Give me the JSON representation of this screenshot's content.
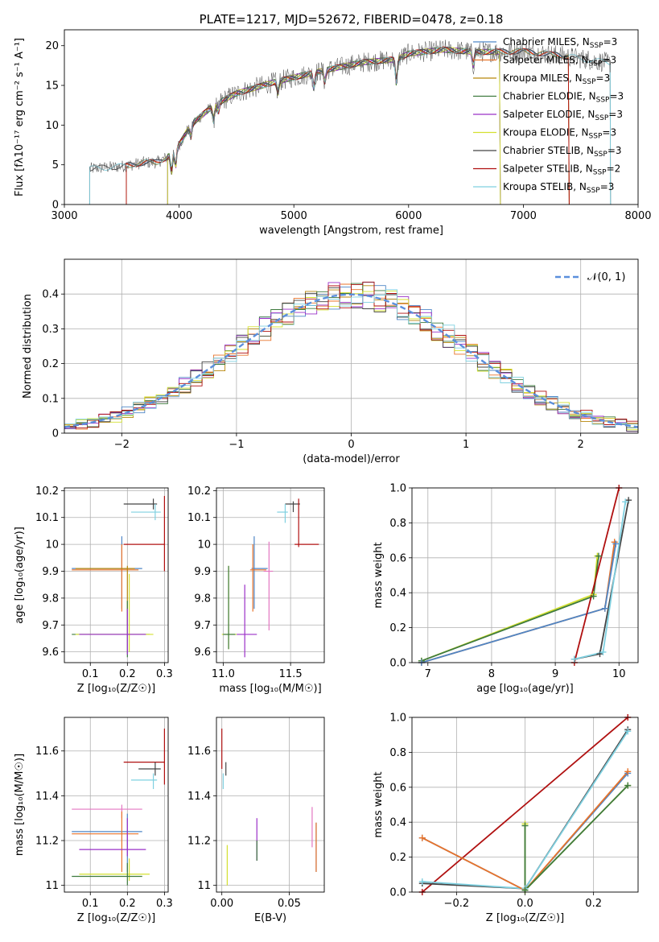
{
  "colors": {
    "chabrier_miles": "#4f86c6",
    "salpeter_miles": "#e8732a",
    "kroupa_miles": "#b8860b",
    "chabrier_elodie": "#3e7a3e",
    "salpeter_elodie": "#9b30c8",
    "kroupa_elodie": "#d4e030",
    "chabrier_stelib": "#444444",
    "salpeter_stelib": "#b01010",
    "kroupa_stelib": "#7fd0e0",
    "pink": "#e377c2",
    "normal": "#5b8fdc",
    "grid": "#b0b0b0"
  },
  "chart_data": [
    {
      "id": "spectrum",
      "type": "line",
      "title": "PLATE=1217, MJD=52672, FIBERID=0478, z=0.18",
      "xlabel": "wavelength [Angstrom, rest frame]",
      "ylabel": "Flux [fλ10⁻¹⁷ erg cm⁻² s⁻¹ A⁻¹]",
      "xlim": [
        3000,
        8000
      ],
      "ylim": [
        0,
        22
      ],
      "xticks": [
        3000,
        4000,
        5000,
        6000,
        7000,
        8000
      ],
      "yticks": [
        0,
        5,
        10,
        15,
        20
      ],
      "grid": false,
      "legend_position": "top-right",
      "series": [
        {
          "name": "Chabrier MILES, N_SSP=3",
          "key": "chabrier_miles",
          "range": [
            3540,
            7400
          ]
        },
        {
          "name": "Salpeter MILES, N_SSP=3",
          "key": "salpeter_miles",
          "range": [
            3540,
            7400
          ]
        },
        {
          "name": "Kroupa MILES, N_SSP=3",
          "key": "kroupa_miles",
          "range": [
            3540,
            7400
          ]
        },
        {
          "name": "Chabrier ELODIE, N_SSP=3",
          "key": "chabrier_elodie",
          "range": [
            3900,
            6800
          ]
        },
        {
          "name": "Salpeter ELODIE, N_SSP=3",
          "key": "salpeter_elodie",
          "range": [
            3900,
            6800
          ]
        },
        {
          "name": "Kroupa ELODIE, N_SSP=3",
          "key": "kroupa_elodie",
          "range": [
            3900,
            6800
          ]
        },
        {
          "name": "Chabrier STELIB, N_SSP=3",
          "key": "chabrier_stelib",
          "range": [
            3220,
            7760
          ]
        },
        {
          "name": "Salpeter STELIB, N_SSP=2",
          "key": "salpeter_stelib",
          "range": [
            3540,
            7400
          ]
        },
        {
          "name": "Kroupa STELIB, N_SSP=3",
          "key": "kroupa_stelib",
          "range": [
            3220,
            7760
          ]
        }
      ],
      "continuum": {
        "x": [
          3220,
          3300,
          3500,
          3700,
          3800,
          3900,
          4000,
          4100,
          4300,
          4500,
          4800,
          5000,
          5300,
          5600,
          5900,
          6000,
          6300,
          6600,
          7000,
          7300,
          7500,
          7760
        ],
        "y": [
          4.5,
          4.6,
          4.8,
          5.3,
          5.3,
          6.0,
          7.5,
          10.0,
          12.5,
          14.0,
          15.3,
          16.0,
          17.0,
          17.9,
          18.3,
          19.0,
          19.5,
          19.2,
          19.3,
          18.8,
          18.4,
          17.8
        ]
      }
    },
    {
      "id": "residuals",
      "type": "line",
      "xlabel": "(data-model)/error",
      "ylabel": "Normed distribution",
      "xlim": [
        -2.5,
        2.5
      ],
      "ylim": [
        0,
        0.5
      ],
      "xticks": [
        -2,
        -1,
        0,
        1,
        2
      ],
      "xtick_labels": [
        "−2",
        "−1",
        "0",
        "1",
        "2"
      ],
      "yticks": [
        0,
        0.1,
        0.2,
        0.3,
        0.4
      ],
      "grid": true,
      "legend_position": "top-right",
      "legend": "𝒩(0, 1)",
      "bin_width": 0.1,
      "curve": "standard normal"
    },
    {
      "id": "age-vs-z",
      "type": "scatter",
      "xlabel": "Z [log₁₀(Z/Z☉)]",
      "ylabel": "age  [log₁₀(age/yr)]",
      "xlim": [
        0.03,
        0.31
      ],
      "ylim": [
        9.56,
        10.21
      ],
      "xticks": [
        0.1,
        0.2,
        0.3
      ],
      "yticks": [
        9.6,
        9.7,
        9.8,
        9.9,
        10.0,
        10.1,
        10.2
      ],
      "grid": true,
      "points": [
        {
          "x": 0.27,
          "y": 10.15,
          "xerr": [
            0.19,
            0.28
          ],
          "yerr": [
            10.13,
            10.17
          ],
          "c": "chabrier_stelib"
        },
        {
          "x": 0.275,
          "y": 10.12,
          "xerr": [
            0.21,
            0.29
          ],
          "yerr": [
            10.09,
            10.15
          ],
          "c": "kroupa_stelib"
        },
        {
          "x": 0.3,
          "y": 10.0,
          "xerr": [
            0.19,
            0.3
          ],
          "yerr": [
            9.9,
            10.18
          ],
          "c": "salpeter_stelib"
        },
        {
          "x": 0.185,
          "y": 9.91,
          "xerr": [
            0.05,
            0.24
          ],
          "yerr": [
            9.76,
            10.03
          ],
          "c": "chabrier_miles"
        },
        {
          "x": 0.185,
          "y": 9.905,
          "xerr": [
            0.05,
            0.23
          ],
          "yerr": [
            9.75,
            10.0
          ],
          "c": "salpeter_miles"
        },
        {
          "x": 0.2,
          "y": 9.91,
          "xerr": [
            0.06,
            0.22
          ],
          "yerr": [
            9.7,
            9.92
          ],
          "c": "kroupa_miles"
        },
        {
          "x": 0.2,
          "y": 9.665,
          "xerr": [
            0.05,
            0.26
          ],
          "yerr": [
            9.58,
            9.79
          ],
          "c": "chabrier_elodie"
        },
        {
          "x": 0.205,
          "y": 9.665,
          "xerr": [
            0.06,
            0.27
          ],
          "yerr": [
            9.6,
            9.89
          ],
          "c": "kroupa_elodie"
        },
        {
          "x": 0.2,
          "y": 9.665,
          "xerr": [
            0.07,
            0.25
          ],
          "yerr": [
            9.59,
            9.76
          ],
          "c": "salpeter_elodie"
        }
      ]
    },
    {
      "id": "age-vs-mass",
      "type": "scatter",
      "xlabel": "mass [log₁₀(M/M☉)]",
      "ylabel": "",
      "xlim": [
        10.95,
        11.75
      ],
      "ylim": [
        9.56,
        10.21
      ],
      "xticks": [
        11.0,
        11.5
      ],
      "xtick_labels": [
        "11.0",
        "11.5"
      ],
      "yticks": [
        9.6,
        9.7,
        9.8,
        9.9,
        10.0,
        10.1,
        10.2
      ],
      "grid": true,
      "points": [
        {
          "x": 11.52,
          "y": 10.15,
          "xerr": [
            11.46,
            11.57
          ],
          "yerr": [
            10.12,
            10.16
          ],
          "c": "chabrier_stelib"
        },
        {
          "x": 11.46,
          "y": 10.12,
          "xerr": [
            11.4,
            11.48
          ],
          "yerr": [
            10.08,
            10.15
          ],
          "c": "kroupa_stelib"
        },
        {
          "x": 11.56,
          "y": 10.0,
          "xerr": [
            11.53,
            11.71
          ],
          "yerr": [
            9.99,
            10.17
          ],
          "c": "salpeter_stelib"
        },
        {
          "x": 11.23,
          "y": 9.91,
          "xerr": [
            11.21,
            11.33
          ],
          "yerr": [
            9.76,
            10.03
          ],
          "c": "chabrier_miles"
        },
        {
          "x": 11.22,
          "y": 9.905,
          "xerr": [
            11.2,
            11.32
          ],
          "yerr": [
            9.75,
            10.0
          ],
          "c": "salpeter_miles"
        },
        {
          "x": 11.34,
          "y": 9.9,
          "xerr": [
            11.3,
            11.37
          ],
          "yerr": [
            9.68,
            10.01
          ],
          "c": "pink"
        },
        {
          "x": 11.04,
          "y": 9.665,
          "xerr": [
            10.99,
            11.1
          ],
          "yerr": [
            9.61,
            9.92
          ],
          "c": "kroupa_elodie"
        },
        {
          "x": 11.04,
          "y": 9.665,
          "xerr": [
            11.0,
            11.09
          ],
          "yerr": [
            9.61,
            9.92
          ],
          "c": "chabrier_elodie"
        },
        {
          "x": 11.16,
          "y": 9.665,
          "xerr": [
            11.1,
            11.25
          ],
          "yerr": [
            9.58,
            9.85
          ],
          "c": "salpeter_elodie"
        }
      ]
    },
    {
      "id": "weight-vs-age",
      "type": "line",
      "xlabel": "age  [log₁₀(age/yr)]",
      "ylabel": "mass weight",
      "xlim": [
        6.75,
        10.3
      ],
      "ylim": [
        0,
        1.0
      ],
      "xticks": [
        7,
        8,
        9,
        10
      ],
      "yticks": [
        0,
        0.2,
        0.4,
        0.6,
        0.8,
        1.0
      ],
      "ytick_labels": [
        "0.0",
        "0.2",
        "0.4",
        "0.6",
        "0.8",
        "1.0"
      ],
      "grid": true,
      "series": [
        {
          "c": "kroupa_elodie",
          "x": [
            6.9,
            9.6,
            9.66
          ],
          "y": [
            0.01,
            0.39,
            0.61
          ]
        },
        {
          "c": "chabrier_elodie",
          "x": [
            6.9,
            9.6,
            9.68
          ],
          "y": [
            0.01,
            0.38,
            0.61
          ]
        },
        {
          "c": "salpeter_miles",
          "x": [
            6.9,
            9.78,
            9.93
          ],
          "y": [
            0.0,
            0.31,
            0.69
          ]
        },
        {
          "c": "chabrier_miles",
          "x": [
            6.9,
            9.78,
            9.95
          ],
          "y": [
            0.0,
            0.31,
            0.68
          ]
        },
        {
          "c": "salpeter_stelib",
          "x": [
            9.3,
            10.0
          ],
          "y": [
            0.0,
            1.0
          ]
        },
        {
          "c": "chabrier_stelib",
          "x": [
            9.3,
            9.7,
            10.15
          ],
          "y": [
            0.02,
            0.05,
            0.93
          ]
        },
        {
          "c": "kroupa_stelib",
          "x": [
            9.3,
            9.75,
            10.1
          ],
          "y": [
            0.02,
            0.06,
            0.92
          ]
        }
      ]
    },
    {
      "id": "mass-vs-z",
      "type": "scatter",
      "xlabel": "Z [log₁₀(Z/Z☉)]",
      "ylabel": "mass [log₁₀(M/M☉)]",
      "xlim": [
        0.03,
        0.31
      ],
      "ylim": [
        10.97,
        11.75
      ],
      "xticks": [
        0.1,
        0.2,
        0.3
      ],
      "yticks": [
        11.0,
        11.2,
        11.4,
        11.6
      ],
      "grid": true,
      "points": [
        {
          "x": 0.3,
          "y": 11.55,
          "xerr": [
            0.19,
            0.3
          ],
          "yerr": [
            11.45,
            11.7
          ],
          "c": "salpeter_stelib"
        },
        {
          "x": 0.275,
          "y": 11.52,
          "xerr": [
            0.23,
            0.29
          ],
          "yerr": [
            11.49,
            11.55
          ],
          "c": "chabrier_stelib"
        },
        {
          "x": 0.27,
          "y": 11.47,
          "xerr": [
            0.21,
            0.28
          ],
          "yerr": [
            11.43,
            11.5
          ],
          "c": "kroupa_stelib"
        },
        {
          "x": 0.185,
          "y": 11.34,
          "xerr": [
            0.05,
            0.24
          ],
          "yerr": [
            11.3,
            11.36
          ],
          "c": "pink"
        },
        {
          "x": 0.2,
          "y": 11.24,
          "xerr": [
            0.05,
            0.24
          ],
          "yerr": [
            11.06,
            11.32
          ],
          "c": "chabrier_miles"
        },
        {
          "x": 0.185,
          "y": 11.23,
          "xerr": [
            0.05,
            0.23
          ],
          "yerr": [
            11.06,
            11.33
          ],
          "c": "salpeter_miles"
        },
        {
          "x": 0.2,
          "y": 11.16,
          "xerr": [
            0.07,
            0.25
          ],
          "yerr": [
            11.13,
            11.3
          ],
          "c": "salpeter_elodie"
        },
        {
          "x": 0.205,
          "y": 11.05,
          "xerr": [
            0.07,
            0.26
          ],
          "yerr": [
            11.02,
            11.12
          ],
          "c": "kroupa_elodie"
        },
        {
          "x": 0.2,
          "y": 11.04,
          "xerr": [
            0.05,
            0.24
          ],
          "yerr": [
            11.0,
            11.1
          ],
          "c": "chabrier_elodie"
        }
      ]
    },
    {
      "id": "mass-vs-ebv",
      "type": "scatter",
      "xlabel": "E(B-V)",
      "ylabel": "",
      "xlim": [
        -0.004,
        0.076
      ],
      "ylim": [
        10.97,
        11.75
      ],
      "xticks": [
        0.0,
        0.05
      ],
      "xtick_labels": [
        "0.00",
        "0.05"
      ],
      "yticks": [
        11.0,
        11.2,
        11.4,
        11.6
      ],
      "grid": true,
      "points": [
        {
          "x": 0.0,
          "y": 11.6,
          "yerr": [
            11.52,
            11.7
          ],
          "c": "salpeter_stelib"
        },
        {
          "x": 0.003,
          "y": 11.52,
          "yerr": [
            11.49,
            11.55
          ],
          "c": "chabrier_stelib"
        },
        {
          "x": 0.001,
          "y": 11.46,
          "yerr": [
            11.43,
            11.5
          ],
          "c": "kroupa_stelib"
        },
        {
          "x": 0.067,
          "y": 11.25,
          "yerr": [
            11.17,
            11.35
          ],
          "c": "pink"
        },
        {
          "x": 0.07,
          "y": 11.2,
          "yerr": [
            11.06,
            11.28
          ],
          "c": "chabrier_miles"
        },
        {
          "x": 0.07,
          "y": 11.18,
          "yerr": [
            11.06,
            11.28
          ],
          "c": "salpeter_miles"
        },
        {
          "x": 0.026,
          "y": 11.2,
          "yerr": [
            11.11,
            11.3
          ],
          "c": "salpeter_elodie"
        },
        {
          "x": 0.026,
          "y": 11.15,
          "yerr": [
            11.11,
            11.2
          ],
          "c": "chabrier_elodie"
        },
        {
          "x": 0.004,
          "y": 11.1,
          "yerr": [
            11.0,
            11.18
          ],
          "c": "kroupa_elodie"
        }
      ]
    },
    {
      "id": "weight-vs-z",
      "type": "line",
      "xlabel": "Z [log₁₀(Z/Z☉)]",
      "ylabel": "mass weight",
      "xlim": [
        -0.33,
        0.33
      ],
      "ylim": [
        0,
        1.0
      ],
      "xticks": [
        -0.2,
        0.0,
        0.2
      ],
      "xtick_labels": [
        "−0.2",
        "0.0",
        "0.2"
      ],
      "yticks": [
        0,
        0.2,
        0.4,
        0.6,
        0.8,
        1.0
      ],
      "ytick_labels": [
        "0.0",
        "0.2",
        "0.4",
        "0.6",
        "0.8",
        "1.0"
      ],
      "grid": true,
      "series": [
        {
          "c": "salpeter_stelib",
          "x": [
            -0.3,
            0.3
          ],
          "y": [
            0.0,
            1.0
          ]
        },
        {
          "c": "chabrier_stelib",
          "x": [
            -0.3,
            0.0,
            0.3
          ],
          "y": [
            0.05,
            0.02,
            0.93
          ]
        },
        {
          "c": "kroupa_stelib",
          "x": [
            -0.3,
            0.0,
            0.3
          ],
          "y": [
            0.06,
            0.02,
            0.92
          ]
        },
        {
          "c": "chabrier_miles",
          "x": [
            -0.3,
            0.0,
            0.3
          ],
          "y": [
            0.31,
            0.01,
            0.68
          ]
        },
        {
          "c": "salpeter_miles",
          "x": [
            -0.3,
            0.0,
            0.3
          ],
          "y": [
            0.31,
            0.01,
            0.69
          ]
        },
        {
          "c": "kroupa_elodie",
          "x": [
            0.0,
            0.0,
            0.3
          ],
          "y": [
            0.39,
            0.01,
            0.61
          ]
        },
        {
          "c": "chabrier_elodie",
          "x": [
            0.0,
            0.0,
            0.3
          ],
          "y": [
            0.38,
            0.01,
            0.61
          ]
        }
      ]
    }
  ]
}
